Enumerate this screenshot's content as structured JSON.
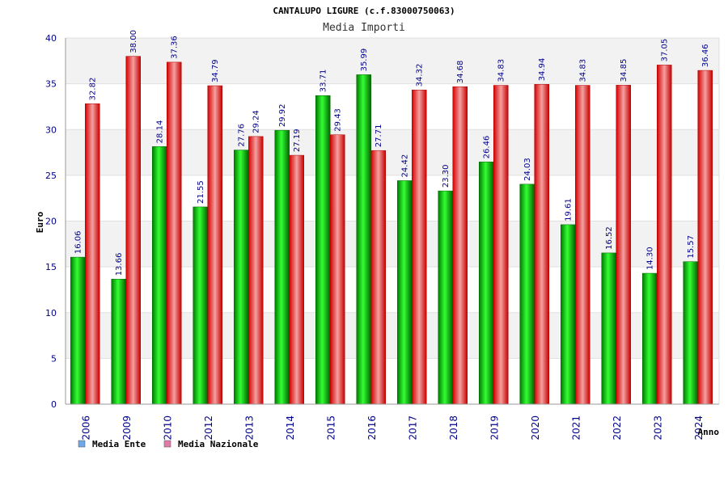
{
  "chart_data": {
    "type": "bar",
    "title": "CANTALUPO LIGURE (c.f.83000750063)",
    "subtitle": "Media Importi",
    "xlabel": "Anno",
    "ylabel": "Euro",
    "ylim": [
      0,
      40
    ],
    "yticks": [
      0,
      5,
      10,
      15,
      20,
      25,
      30,
      35,
      40
    ],
    "grid": true,
    "legend_position": "bottom-left",
    "categories": [
      "2006",
      "2009",
      "2010",
      "2012",
      "2013",
      "2014",
      "2015",
      "2016",
      "2017",
      "2018",
      "2019",
      "2020",
      "2021",
      "2022",
      "2023",
      "2024"
    ],
    "series": [
      {
        "name": "Media Ente",
        "color": "#00b000",
        "legend_color": "#6fa8e6",
        "values": [
          16.06,
          13.66,
          28.14,
          21.55,
          27.76,
          29.92,
          33.71,
          35.99,
          24.42,
          23.3,
          26.46,
          24.03,
          19.61,
          16.52,
          14.3,
          15.57
        ],
        "labels": [
          "16.06",
          "13.66",
          "28.14",
          "21.55",
          "27.76",
          "29.92",
          "33.71",
          "35.99",
          "24.42",
          "23.30",
          "26.46",
          "24.03",
          "19.61",
          "16.52",
          "14.30",
          "15.57"
        ]
      },
      {
        "name": "Media Nazionale",
        "color": "#e00000",
        "legend_color": "#e07aa8",
        "values": [
          32.82,
          38.0,
          37.36,
          34.79,
          29.24,
          27.19,
          29.43,
          27.71,
          34.32,
          34.68,
          34.83,
          34.94,
          34.83,
          34.85,
          37.05,
          36.46
        ],
        "labels": [
          "32.82",
          "38.00",
          "37.36",
          "34.79",
          "29.24",
          "27.19",
          "29.43",
          "27.71",
          "34.32",
          "34.68",
          "34.83",
          "34.94",
          "34.83",
          "34.85",
          "37.05",
          "36.46"
        ]
      }
    ]
  }
}
